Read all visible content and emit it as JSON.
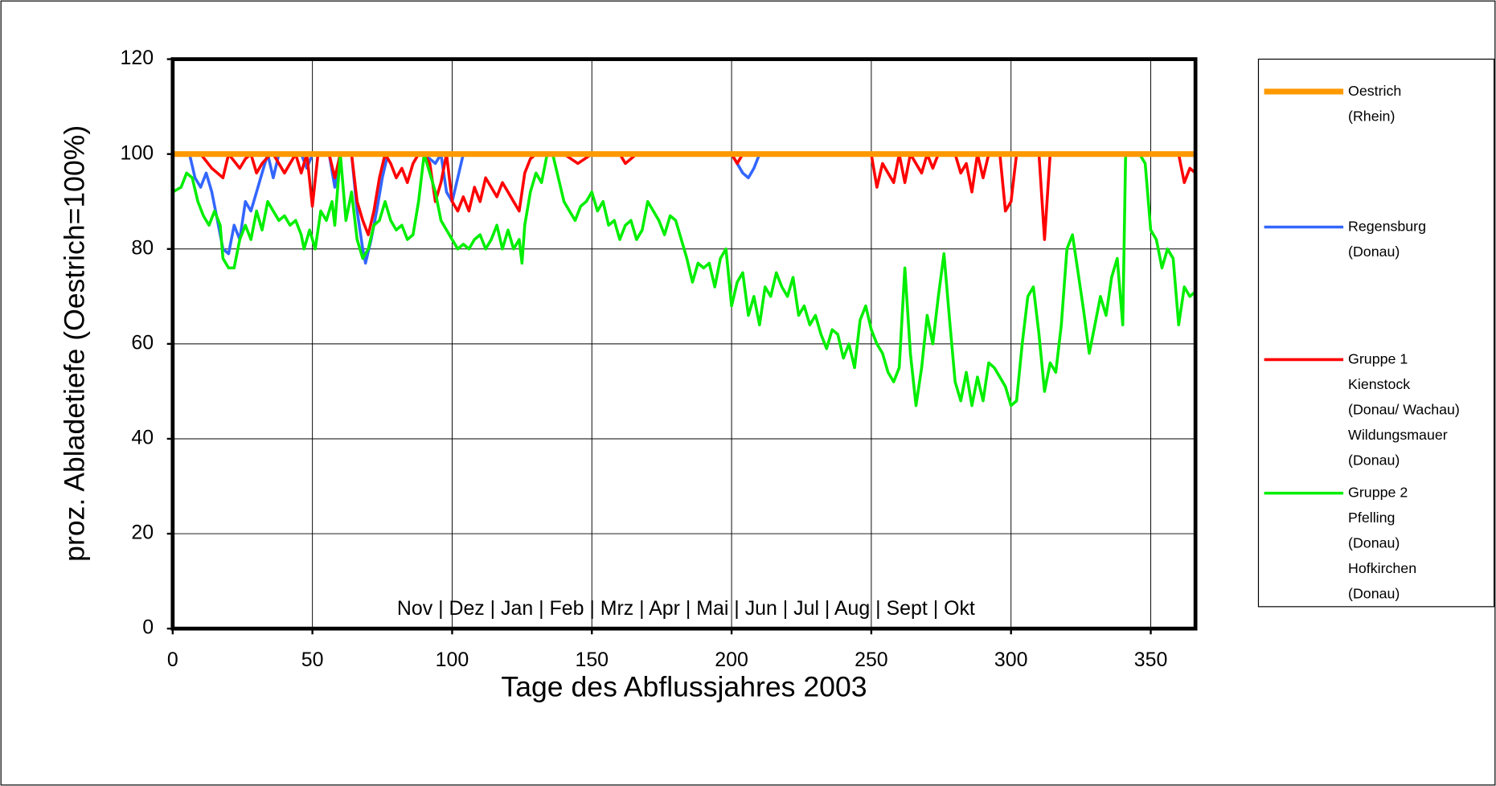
{
  "chart_data": {
    "type": "line",
    "xlabel": "Tage des Abflussjahres 2003",
    "ylabel": "proz. Abladetiefe (Oestrich=100%)",
    "annotation": "Nov  |   Dez  |   Jan   |   Feb  |  Mrz  |   Apr   |    Mai  |  Jun   |   Jul   |   Aug   |   Sept  |   Okt",
    "xlim": [
      0,
      366
    ],
    "ylim": [
      0,
      120
    ],
    "xticks": [
      0,
      50,
      100,
      150,
      200,
      250,
      300,
      350
    ],
    "yticks": [
      0,
      20,
      40,
      60,
      80,
      100,
      120
    ],
    "grid": true,
    "legend": "right",
    "series": [
      {
        "name": "Oestrich\n(Rhein)",
        "color": "#ff9900",
        "width": 6,
        "x": [
          0,
          366
        ],
        "values": [
          100,
          100
        ]
      },
      {
        "name": "Regensburg\n(Donau)",
        "color": "#3366ff",
        "width": 3,
        "x": [
          0,
          6,
          8,
          10,
          12,
          14,
          16,
          18,
          20,
          22,
          24,
          26,
          28,
          30,
          32,
          34,
          36,
          38,
          46,
          48,
          50,
          56,
          58,
          60,
          64,
          66,
          68,
          69,
          71,
          73,
          75,
          77,
          90,
          94,
          96,
          98,
          100,
          102,
          104,
          200,
          202,
          204,
          206,
          208,
          210,
          366
        ],
        "values": [
          100,
          100,
          95,
          93,
          96,
          92,
          86,
          80,
          79,
          85,
          82,
          90,
          88,
          92,
          96,
          100,
          95,
          100,
          100,
          97,
          100,
          100,
          93,
          100,
          100,
          88,
          80,
          77,
          82,
          88,
          95,
          100,
          100,
          98,
          100,
          92,
          90,
          95,
          100,
          100,
          98,
          96,
          95,
          97,
          100,
          100
        ]
      },
      {
        "name": "Gruppe 1\nKienstock\n(Donau/ Wachau)\nWildungsmauer\n(Donau)",
        "color": "#ff0000",
        "width": 3,
        "x": [
          0,
          10,
          14,
          16,
          18,
          20,
          24,
          26,
          28,
          30,
          32,
          35,
          36,
          40,
          42,
          44,
          46,
          48,
          50,
          52,
          56,
          58,
          60,
          64,
          66,
          68,
          70,
          72,
          74,
          76,
          78,
          80,
          82,
          84,
          86,
          88,
          90,
          92,
          94,
          96,
          98,
          100,
          102,
          104,
          106,
          108,
          110,
          112,
          114,
          116,
          118,
          120,
          122,
          124,
          126,
          128,
          130,
          140,
          145,
          150,
          160,
          162,
          166,
          200,
          202,
          204,
          250,
          252,
          254,
          256,
          258,
          260,
          262,
          264,
          268,
          270,
          272,
          274,
          280,
          282,
          284,
          286,
          288,
          290,
          292,
          296,
          298,
          300,
          302,
          306,
          310,
          312,
          314,
          316,
          360,
          362,
          364,
          366
        ],
        "values": [
          100,
          100,
          97,
          96,
          95,
          100,
          97,
          99,
          100,
          96,
          98,
          100,
          100,
          96,
          98,
          100,
          96,
          100,
          89,
          100,
          100,
          95,
          100,
          100,
          90,
          86,
          83,
          88,
          95,
          100,
          98,
          95,
          97,
          94,
          98,
          100,
          100,
          98,
          90,
          94,
          100,
          90,
          88,
          91,
          88,
          93,
          90,
          95,
          93,
          91,
          94,
          92,
          90,
          88,
          96,
          99,
          100,
          100,
          98,
          100,
          100,
          98,
          100,
          100,
          98,
          100,
          100,
          93,
          98,
          96,
          94,
          100,
          94,
          100,
          96,
          100,
          97,
          100,
          100,
          96,
          98,
          92,
          100,
          95,
          100,
          100,
          88,
          90,
          100,
          100,
          100,
          82,
          100,
          100,
          100,
          94,
          97,
          96
        ]
      },
      {
        "name": "Gruppe 2\nPfelling\n(Donau)\nHofkirchen\n(Donau)",
        "color": "#00ee00",
        "width": 3,
        "x": [
          0,
          3,
          5,
          7,
          9,
          11,
          13,
          15,
          17,
          18,
          20,
          22,
          24,
          26,
          28,
          30,
          32,
          34,
          36,
          38,
          40,
          42,
          44,
          46,
          47,
          49,
          51,
          53,
          55,
          57,
          58,
          60,
          62,
          64,
          66,
          68,
          70,
          72,
          74,
          76,
          78,
          80,
          82,
          84,
          86,
          88,
          90,
          92,
          94,
          96,
          98,
          100,
          102,
          104,
          106,
          108,
          110,
          112,
          114,
          116,
          118,
          120,
          122,
          124,
          125,
          126,
          128,
          130,
          132,
          134,
          136,
          138,
          140,
          142,
          144,
          146,
          148,
          150,
          152,
          154,
          156,
          158,
          160,
          162,
          164,
          166,
          168,
          170,
          172,
          174,
          176,
          178,
          180,
          182,
          184,
          186,
          188,
          190,
          192,
          194,
          196,
          198,
          200,
          202,
          204,
          206,
          208,
          210,
          212,
          214,
          216,
          218,
          220,
          222,
          224,
          226,
          228,
          230,
          232,
          234,
          236,
          238,
          240,
          242,
          244,
          246,
          248,
          250,
          252,
          254,
          256,
          258,
          260,
          262,
          264,
          266,
          268,
          270,
          272,
          274,
          276,
          278,
          280,
          282,
          284,
          286,
          288,
          290,
          292,
          294,
          296,
          298,
          300,
          302,
          304,
          306,
          308,
          310,
          312,
          314,
          316,
          318,
          320,
          322,
          324,
          326,
          328,
          330,
          332,
          334,
          336,
          338,
          340,
          341,
          344,
          346,
          348,
          350,
          352,
          354,
          356,
          358,
          360,
          362,
          364,
          366
        ],
        "values": [
          92,
          93,
          96,
          95,
          90,
          87,
          85,
          88,
          85,
          78,
          76,
          76,
          82,
          85,
          82,
          88,
          84,
          90,
          88,
          86,
          87,
          85,
          86,
          83,
          80,
          84,
          80,
          88,
          86,
          90,
          85,
          100,
          86,
          92,
          82,
          78,
          80,
          85,
          86,
          90,
          86,
          84,
          85,
          82,
          83,
          90,
          100,
          96,
          92,
          86,
          84,
          82,
          80,
          81,
          80,
          82,
          83,
          80,
          82,
          85,
          80,
          84,
          80,
          82,
          77,
          85,
          92,
          96,
          94,
          100,
          100,
          95,
          90,
          88,
          86,
          89,
          90,
          92,
          88,
          90,
          85,
          86,
          82,
          85,
          86,
          82,
          84,
          90,
          88,
          86,
          83,
          87,
          86,
          82,
          78,
          73,
          77,
          76,
          77,
          72,
          78,
          80,
          68,
          73,
          75,
          66,
          70,
          64,
          72,
          70,
          75,
          72,
          70,
          74,
          66,
          68,
          64,
          66,
          62,
          59,
          63,
          62,
          57,
          60,
          55,
          65,
          68,
          63,
          60,
          58,
          54,
          52,
          55,
          76,
          58,
          47,
          55,
          66,
          60,
          70,
          79,
          65,
          52,
          48,
          54,
          47,
          53,
          48,
          56,
          55,
          53,
          51,
          47,
          48,
          60,
          70,
          72,
          62,
          50,
          56,
          54,
          64,
          80,
          83,
          75,
          67,
          58,
          64,
          70,
          66,
          74,
          78,
          64,
          100,
          100,
          100,
          98,
          84,
          82,
          76,
          80,
          78,
          64,
          72,
          70,
          71
        ]
      }
    ]
  }
}
